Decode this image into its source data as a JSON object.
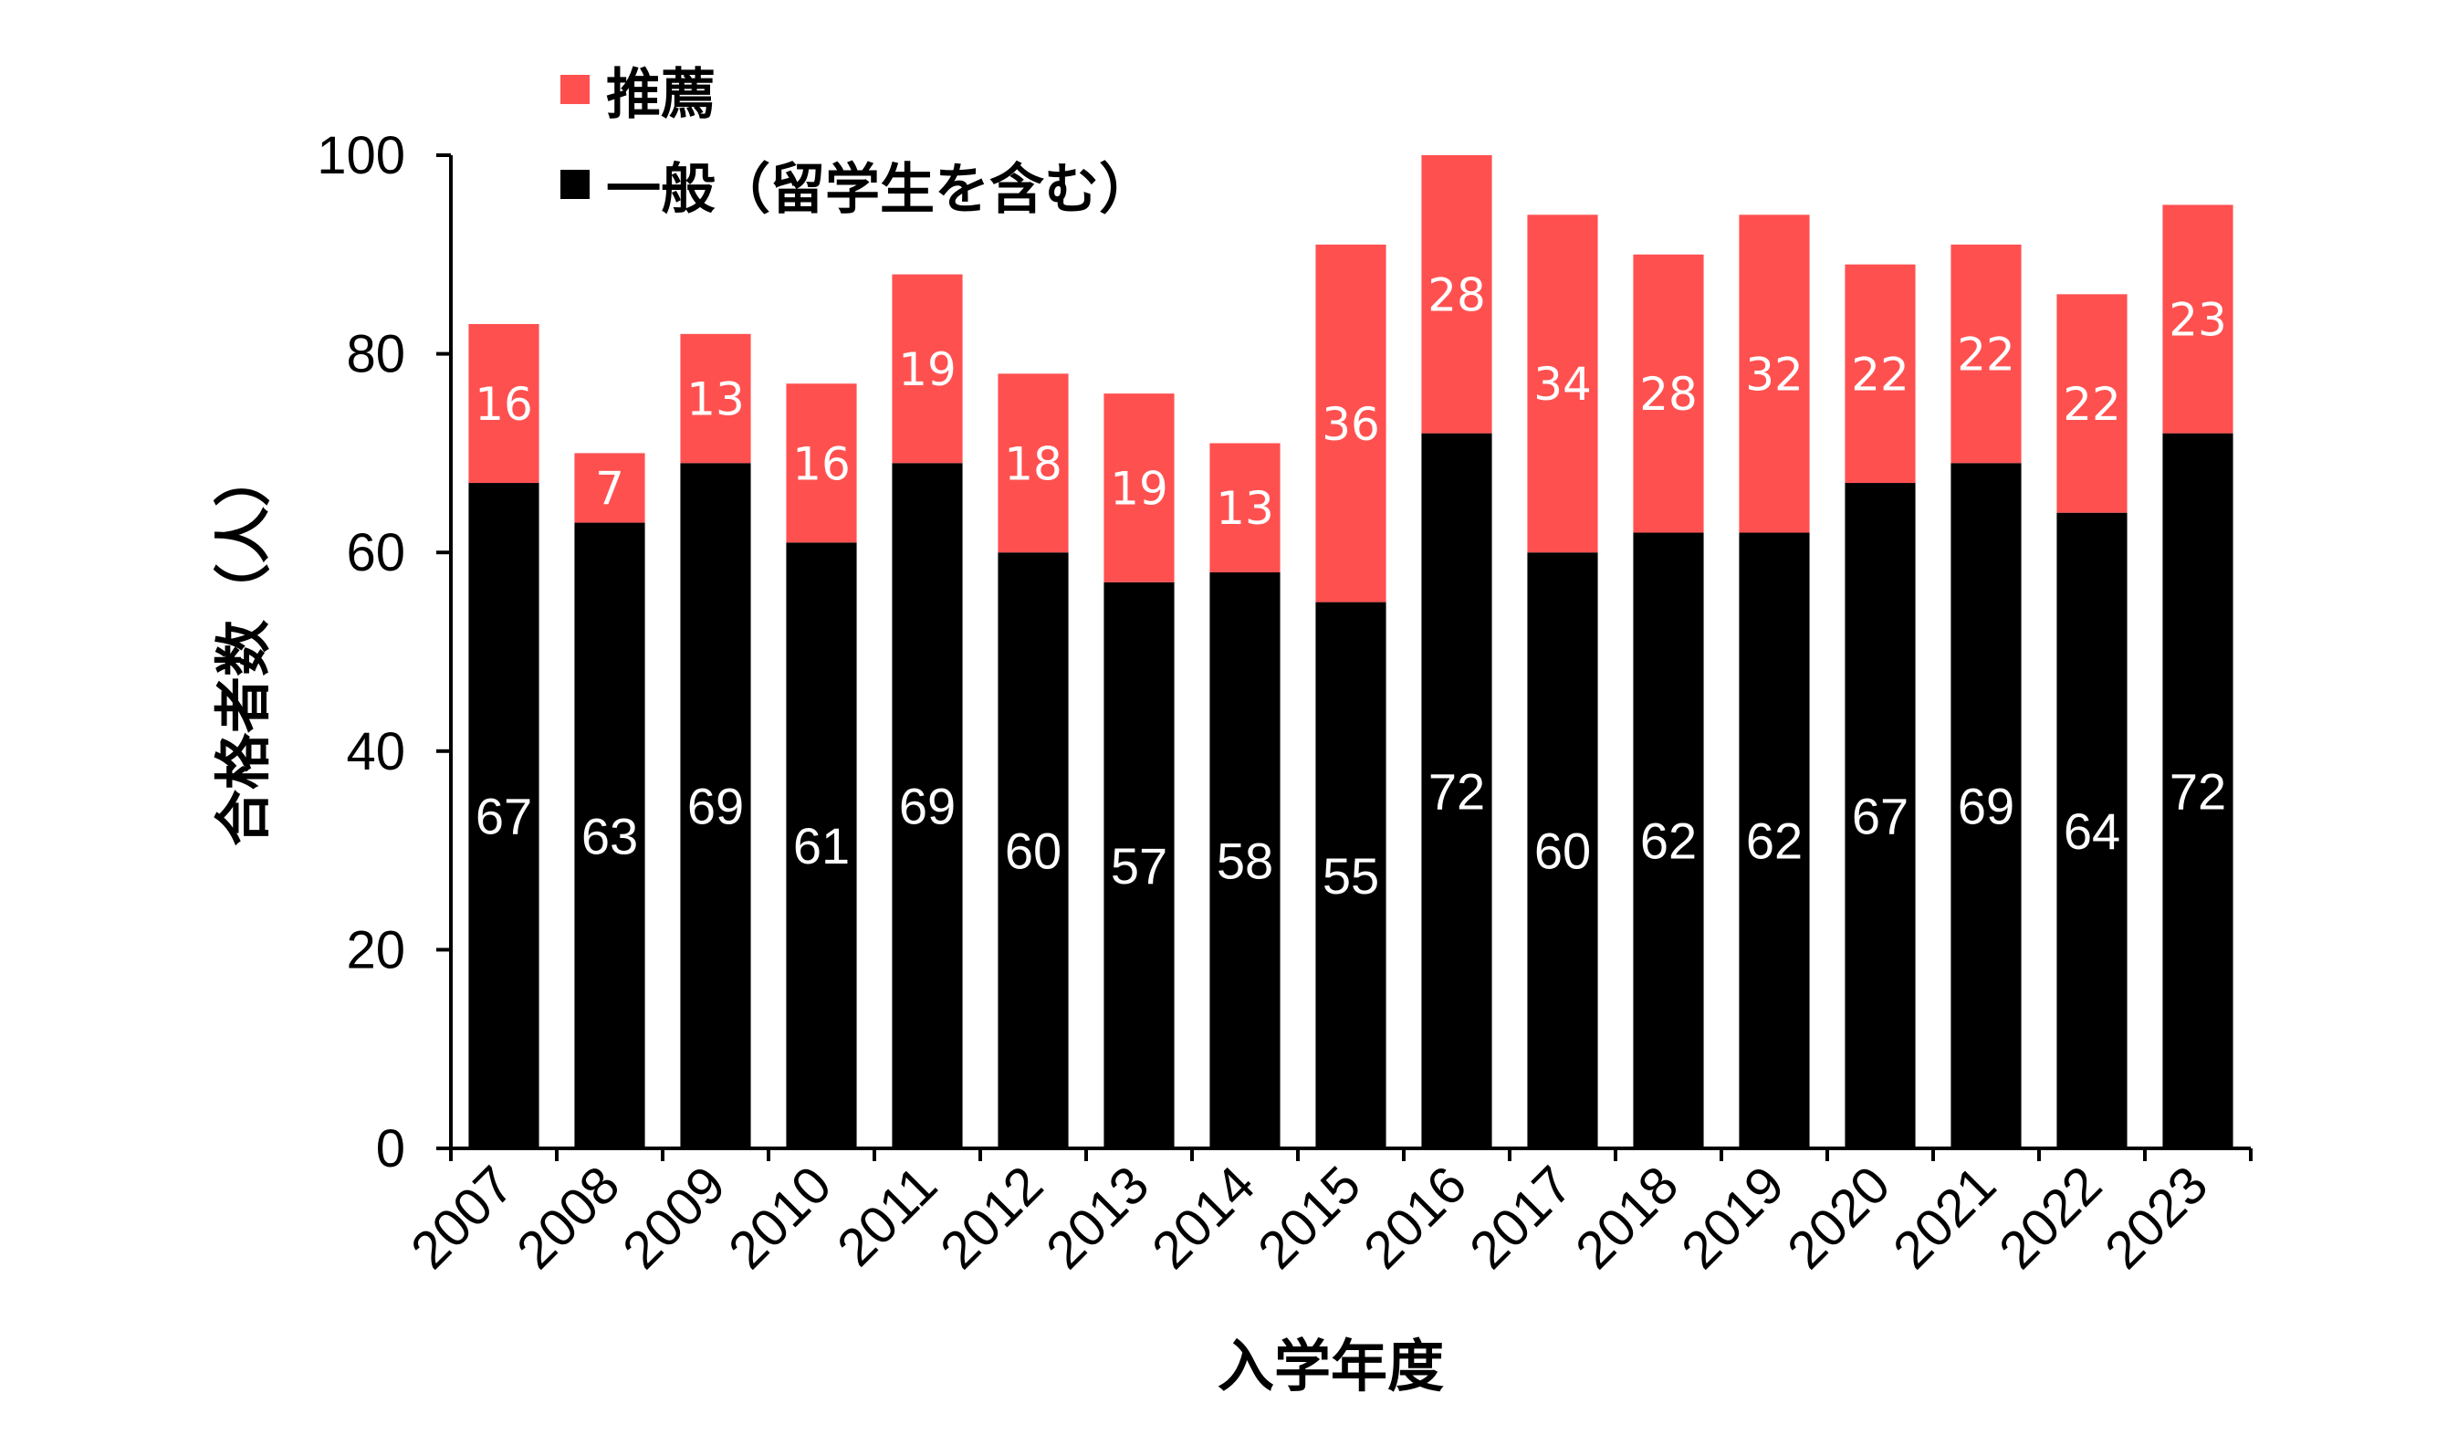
{
  "chart_data": {
    "type": "bar",
    "stacked": true,
    "categories": [
      "2007",
      "2008",
      "2009",
      "2010",
      "2011",
      "2012",
      "2013",
      "2014",
      "2015",
      "2016",
      "2017",
      "2018",
      "2019",
      "2020",
      "2021",
      "2022",
      "2023"
    ],
    "series": [
      {
        "name": "一般（留学生を含む）",
        "color": "#000000",
        "values": [
          67,
          63,
          69,
          61,
          69,
          60,
          57,
          58,
          55,
          72,
          60,
          62,
          62,
          67,
          69,
          64,
          72
        ]
      },
      {
        "name": "推薦",
        "color": "#ff5050",
        "values": [
          16,
          7,
          13,
          16,
          19,
          18,
          19,
          13,
          36,
          28,
          34,
          28,
          32,
          22,
          22,
          22,
          23
        ]
      }
    ],
    "xlabel": "入学年度",
    "ylabel": "合格者数（人）",
    "ylim": [
      0,
      100
    ],
    "yticks": [
      0,
      20,
      40,
      60,
      80,
      100
    ],
    "grid": false,
    "legend_position": "top-left",
    "data_labels": true
  }
}
